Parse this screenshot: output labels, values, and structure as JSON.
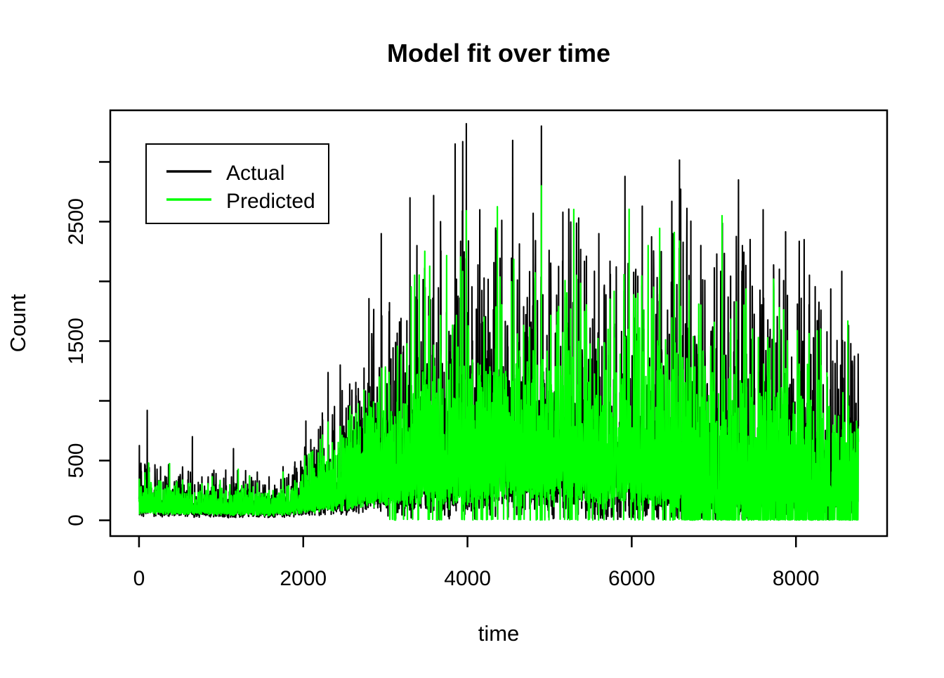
{
  "chart_data": {
    "type": "line",
    "title": "Model fit over time",
    "xlabel": "time",
    "ylabel": "Count",
    "series": [
      {
        "name": "Actual",
        "color": "#000000",
        "line_width": 2.1
      },
      {
        "name": "Predicted",
        "color": "#00FF00",
        "line_width": 2.2
      }
    ],
    "legend": {
      "position": "topleft",
      "entries": [
        "Actual",
        "Predicted"
      ]
    },
    "background_color": "#ffffff",
    "axis_color": "#000000",
    "grid": false,
    "x_ticks": [
      0,
      2000,
      4000,
      6000,
      8000
    ],
    "y_ticks": [
      0,
      500,
      1000,
      1500,
      2000,
      2500,
      3000
    ],
    "y_ticks_labeled": [
      0,
      500,
      1500,
      2500
    ],
    "x_range_data": [
      0,
      8760
    ],
    "y_range_data": [
      0,
      3300
    ],
    "usr": {
      "x0": -350,
      "x1": 9110,
      "y0": -132,
      "y1": 3432
    },
    "sampling": {
      "x_step": 2,
      "seed": 42
    },
    "envelope_columns": [
      "x",
      "actual_low",
      "actual_high",
      "predicted_low",
      "predicted_high"
    ],
    "envelope": [
      [
        0,
        70,
        560,
        60,
        440
      ],
      [
        400,
        60,
        520,
        55,
        420
      ],
      [
        800,
        55,
        470,
        50,
        400
      ],
      [
        1200,
        50,
        430,
        50,
        390
      ],
      [
        1600,
        55,
        420,
        50,
        380
      ],
      [
        1900,
        65,
        520,
        60,
        450
      ],
      [
        2200,
        90,
        950,
        80,
        820
      ],
      [
        2600,
        110,
        1450,
        100,
        1350
      ],
      [
        3000,
        130,
        2050,
        110,
        1600
      ],
      [
        3400,
        150,
        2450,
        130,
        1950
      ],
      [
        3800,
        160,
        2750,
        150,
        2150
      ],
      [
        4200,
        170,
        2800,
        160,
        2350
      ],
      [
        4600,
        200,
        2950,
        190,
        2450
      ],
      [
        5000,
        200,
        2800,
        200,
        2600
      ],
      [
        5400,
        190,
        2550,
        190,
        2350
      ],
      [
        5800,
        160,
        2500,
        160,
        2300
      ],
      [
        6200,
        150,
        2450,
        150,
        2350
      ],
      [
        6600,
        110,
        2500,
        90,
        2250
      ],
      [
        7000,
        70,
        2600,
        30,
        2450
      ],
      [
        7400,
        90,
        2700,
        40,
        2500
      ],
      [
        7800,
        120,
        2600,
        100,
        2150
      ],
      [
        8200,
        120,
        2350,
        100,
        1900
      ],
      [
        8500,
        110,
        1850,
        100,
        1550
      ],
      [
        8760,
        100,
        1750,
        100,
        1400
      ]
    ],
    "actual_peaks": [
      [
        100,
        920
      ],
      [
        650,
        700
      ],
      [
        1150,
        600
      ],
      [
        2450,
        1300
      ],
      [
        2950,
        2400
      ],
      [
        3300,
        2700
      ],
      [
        3850,
        3150
      ],
      [
        4150,
        2600
      ],
      [
        4550,
        3180
      ],
      [
        4900,
        3300
      ],
      [
        5600,
        2400
      ],
      [
        6500,
        2400
      ],
      [
        7300,
        2850
      ],
      [
        7600,
        2600
      ],
      [
        8100,
        2350
      ]
    ],
    "predicted_peaks": [
      [
        4900,
        2800
      ],
      [
        6200,
        2300
      ],
      [
        7100,
        2550
      ],
      [
        8300,
        1600
      ]
    ],
    "generator": {
      "noise_pow": 1.8,
      "cycle_period_hours": 24,
      "cycle_base": 0.55,
      "cycle_amp": 0.45,
      "phase_actual": 1.3,
      "phase_predicted": 1.0,
      "mix_predicted_from_actual": 0.5,
      "super_spike_p": 0.005,
      "super_spike_gain": 0.25,
      "green_spike_p": 0.004,
      "actual_dropout": {
        "from": 3000,
        "to": 8760,
        "p": 0.045,
        "max": 50
      },
      "predicted_dropout_zones": [
        {
          "from": 3000,
          "to": 6600,
          "p": 0.05
        },
        {
          "from": 6600,
          "to": 8760,
          "p": 0.27
        }
      ],
      "actual_cap": 3320,
      "predicted_cap": 2840
    }
  }
}
